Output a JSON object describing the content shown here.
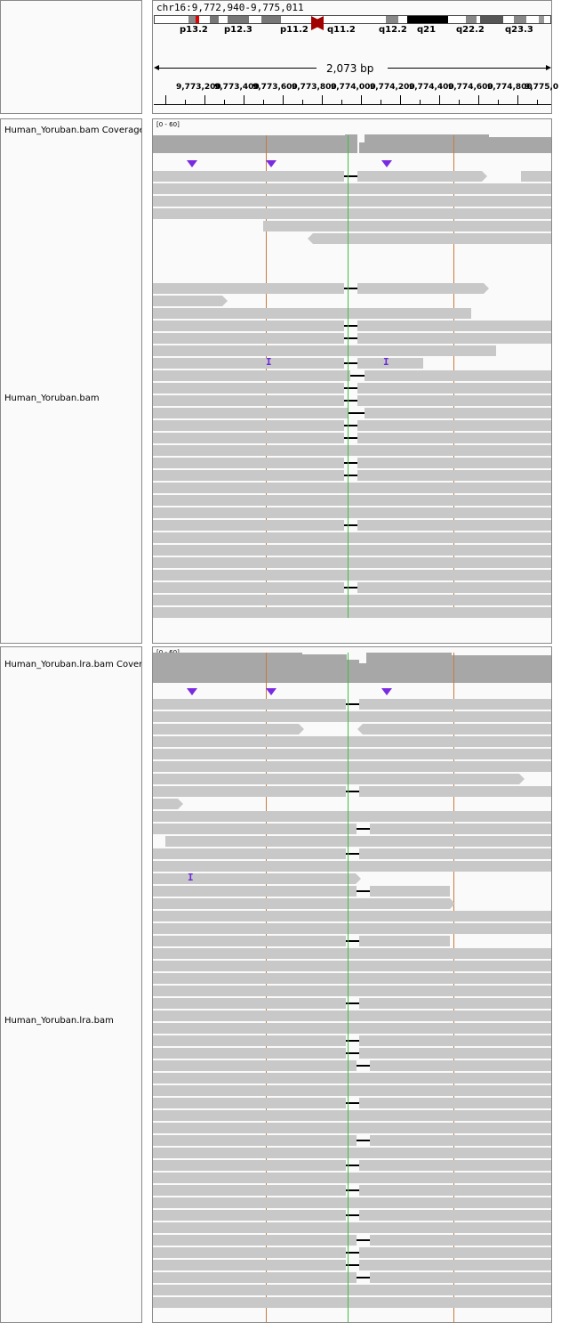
{
  "locus": "chr16:9,772,940-9,775,011",
  "span_label": "2,073 bp",
  "ideogram_bands": [
    "p13.2",
    "p12.3",
    "p11.2",
    "q11.2",
    "q12.2",
    "q21",
    "q22.2",
    "q23.3"
  ],
  "ruler_ticks": [
    "9,773,200",
    "9,773,400",
    "9,773,600",
    "9,773,800",
    "9,774,000",
    "9,774,200",
    "9,774,400",
    "9,774,600",
    "9,774,800",
    "9,775,0"
  ],
  "tracks": [
    {
      "coverage_name": "Human_Yoruban.bam Coverage",
      "alignment_name": "Human_Yoruban.bam",
      "scale": "[0 - 60]"
    },
    {
      "coverage_name": "Human_Yoruban.lra.bam Coverage",
      "alignment_name": "Human_Yoruban.lra.bam",
      "scale": "[0 - 60]"
    }
  ],
  "colors": {
    "read": "#c8c8c8",
    "coverage": "#a7a7a7",
    "insertion": "#6a2bd6",
    "centromere": "#a00000",
    "highlight_band": "#e00000"
  }
}
